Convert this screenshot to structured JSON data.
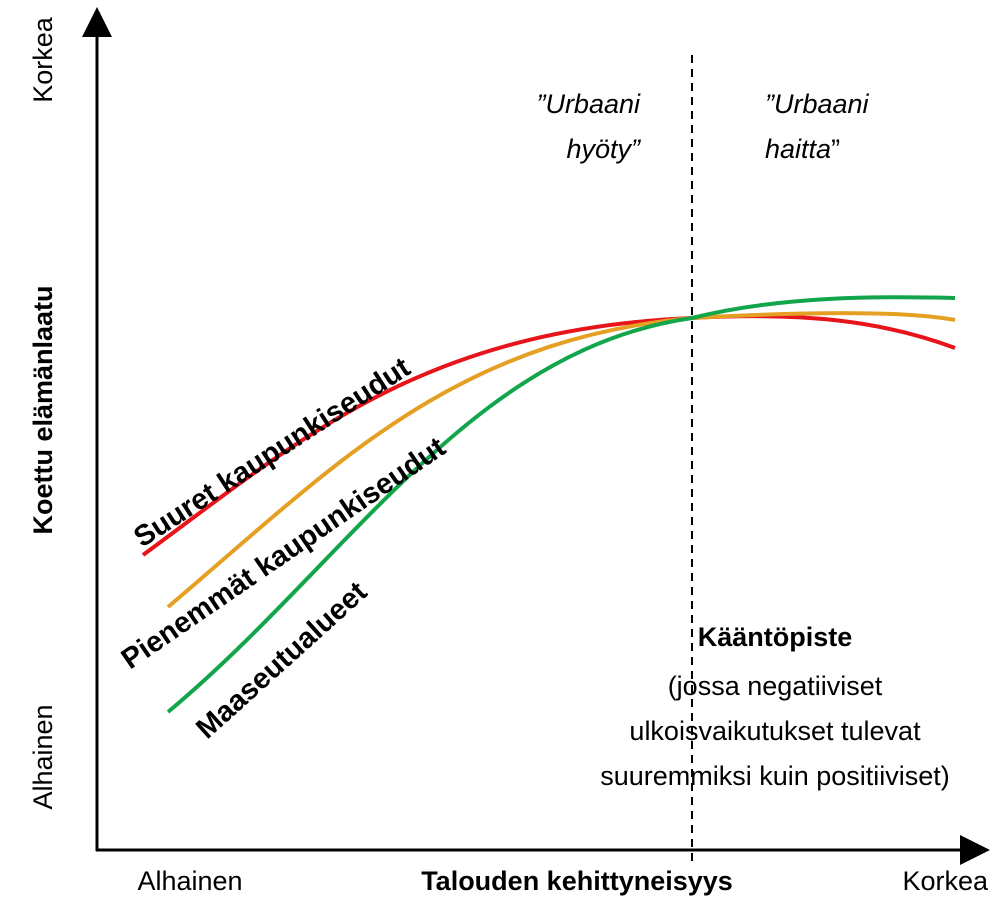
{
  "axes": {
    "y_label": "Koettu elämänlaatu",
    "y_low": "Alhainen",
    "y_high": "Korkea",
    "x_label": "Talouden kehittyneisyys",
    "x_low": "Alhainen",
    "x_high": "Korkea"
  },
  "regions": {
    "left": {
      "line1": "”Urbaani",
      "line2": "hyöty”"
    },
    "right": {
      "line1": "”Urbaani",
      "line2": "haitta",
      "line2_end": "”"
    }
  },
  "curves": [
    {
      "name": "Suuret kaupunkiseudut",
      "color": "#e8141b"
    },
    {
      "name": "Pienemmät kaupunkiseudut",
      "color": "#e5a023"
    },
    {
      "name": "Maaseutualueet",
      "color": "#13a54b"
    }
  ],
  "turning_point": {
    "title": "Kääntöpiste",
    "lines": [
      "(jossa negatiiviset",
      "ulkoisvaikutukset tulevat",
      "suuremmiksi kuin positiiviset)"
    ]
  }
}
